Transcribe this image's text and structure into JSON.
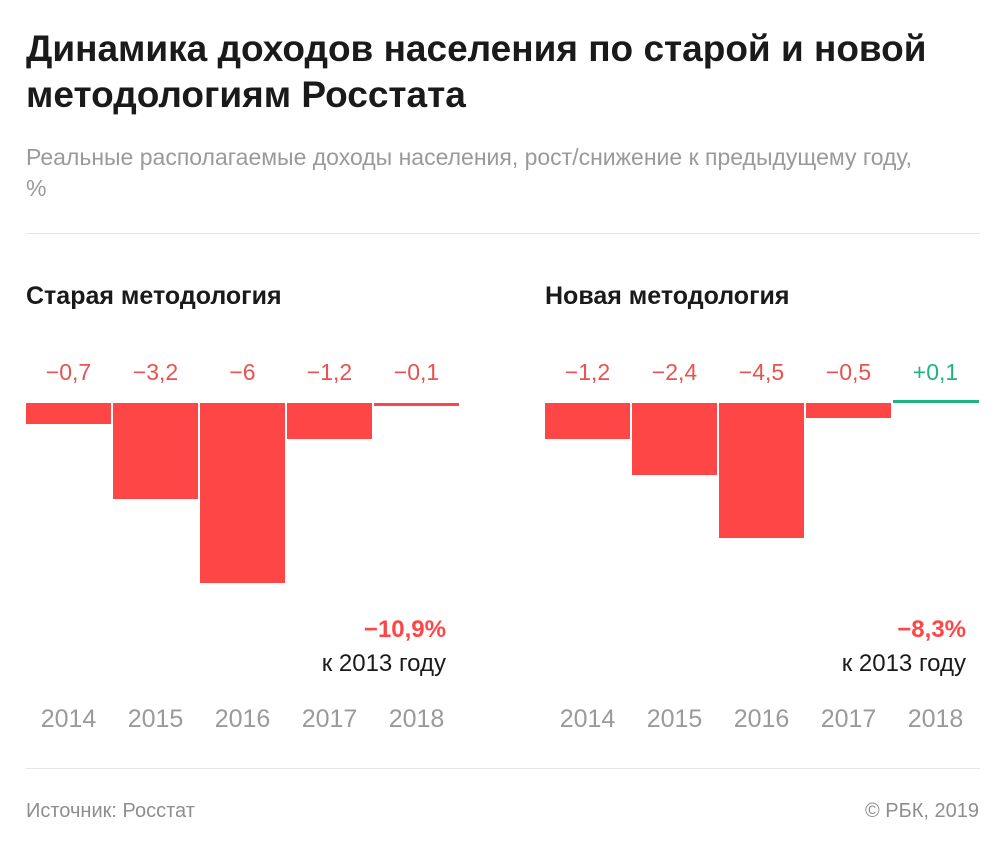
{
  "title": "Динамика доходов населения по старой и новой методологиям Росстата",
  "subtitle": "Реальные располагаемые доходы населения, рост/снижение к предыдущему году, %",
  "colors": {
    "negative": "#ff4646",
    "positive": "#1fb384",
    "label_negative": "#e8524f",
    "axis_label": "#9a9a9a"
  },
  "chart_data": [
    {
      "type": "bar",
      "title": "Старая методология",
      "categories": [
        "2014",
        "2015",
        "2016",
        "2017",
        "2018"
      ],
      "values": [
        -0.7,
        -3.2,
        -6,
        -1.2,
        -0.1
      ],
      "labels": [
        "−0,7",
        "−3,2",
        "−6",
        "−1,2",
        "−0,1"
      ],
      "total": "−10,9%",
      "total_note": "к 2013 году",
      "ylim": [
        -6,
        0.1
      ],
      "grid": false
    },
    {
      "type": "bar",
      "title": "Новая методология",
      "categories": [
        "2014",
        "2015",
        "2016",
        "2017",
        "2018"
      ],
      "values": [
        -1.2,
        -2.4,
        -4.5,
        -0.5,
        0.1
      ],
      "labels": [
        "−1,2",
        "−2,4",
        "−4,5",
        "−0,5",
        "+0,1"
      ],
      "total": "−8,3%",
      "total_note": "к 2013 году",
      "ylim": [
        -6,
        0.1
      ],
      "grid": false
    }
  ],
  "footer": {
    "source": "Источник: Росстат",
    "copyright": "© РБК, 2019"
  }
}
